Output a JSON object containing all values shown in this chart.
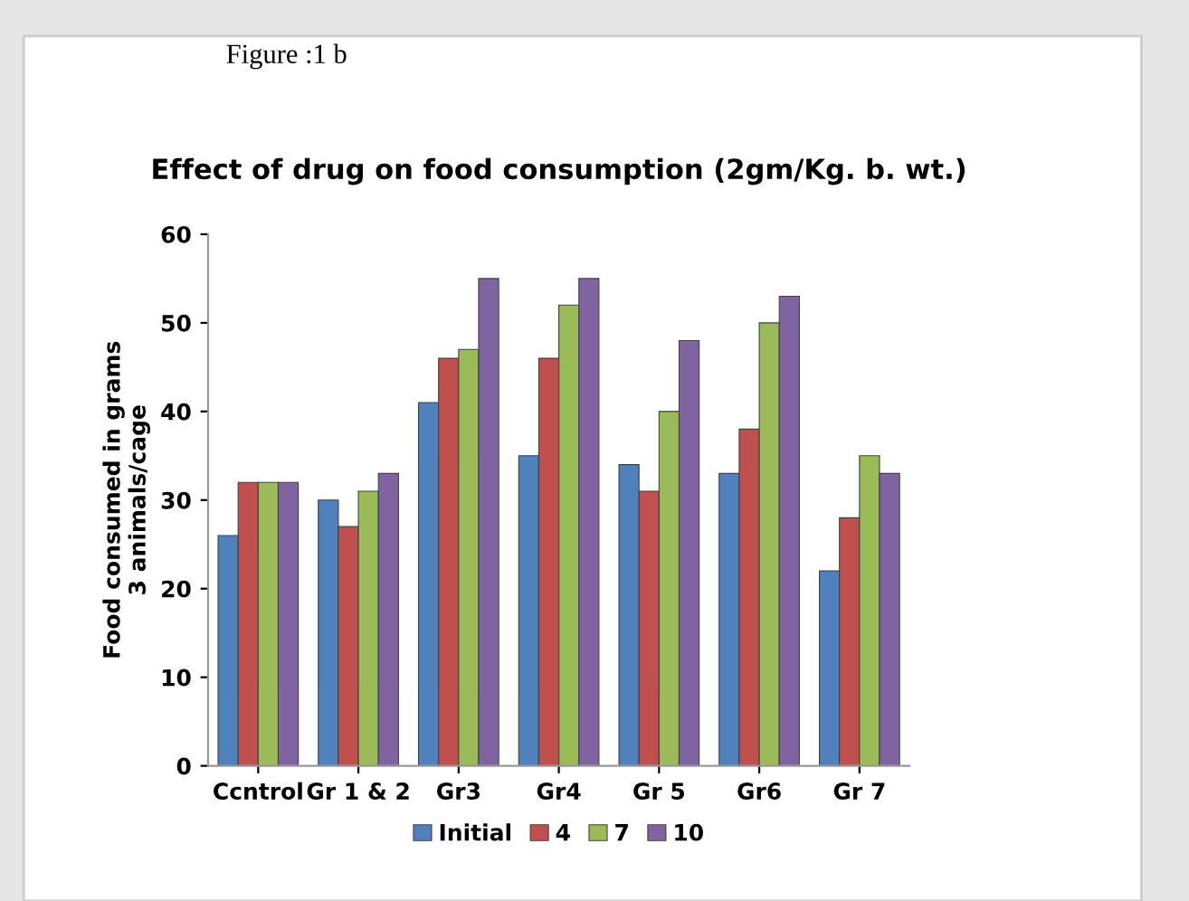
{
  "chart_data": {
    "type": "bar",
    "title": "Effect of drug on food consumption (2gm/Kg. b. wt.)",
    "ylabel": "Food consumed in grams\n3 animals/cage",
    "annotations": [
      "Figure :1 b"
    ],
    "categories": [
      "Ccntrol",
      "Gr 1 & 2",
      "Gr3",
      "Gr4",
      "Gr 5",
      "Gr6",
      "Gr 7"
    ],
    "series": [
      {
        "name": "Initial",
        "color": "#4f81bd",
        "values": [
          26,
          30,
          41,
          35,
          34,
          33,
          22
        ]
      },
      {
        "name": "4",
        "color": "#c0504d",
        "values": [
          32,
          27,
          46,
          46,
          31,
          38,
          28
        ]
      },
      {
        "name": "7",
        "color": "#9bbb59",
        "values": [
          32,
          31,
          47,
          52,
          40,
          50,
          35
        ]
      },
      {
        "name": "10",
        "color": "#8064a2",
        "values": [
          32,
          33,
          55,
          55,
          48,
          53,
          33
        ]
      }
    ],
    "ylim": [
      0,
      60
    ],
    "yticks": [
      0,
      10,
      20,
      30,
      40,
      50,
      60
    ],
    "grid": false,
    "legend": "bottom"
  }
}
